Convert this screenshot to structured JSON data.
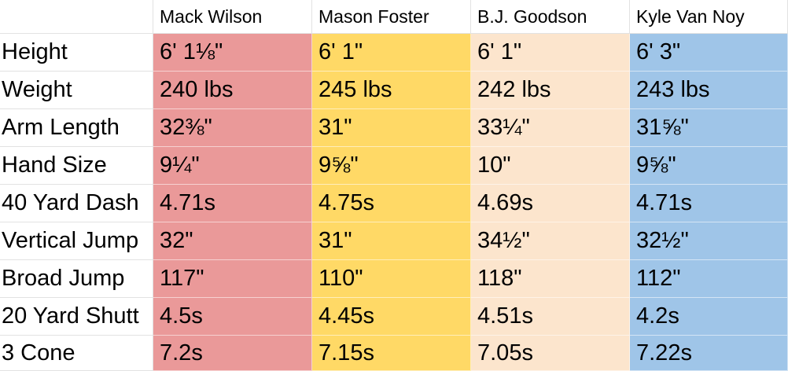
{
  "table": {
    "columns": [
      "Mack Wilson",
      "Mason Foster",
      "B.J. Goodson",
      "Kyle Van Noy"
    ],
    "column_colors": [
      "#ea9999",
      "#ffd966",
      "#fce5cd",
      "#9fc5e8"
    ],
    "rows": [
      {
        "label": "Height",
        "values": [
          "6' 1⅛\"",
          "6' 1\"",
          "6' 1\"",
          "6' 3\""
        ]
      },
      {
        "label": "Weight",
        "values": [
          "240 lbs",
          "245 lbs",
          "242 lbs",
          "243 lbs"
        ]
      },
      {
        "label": "Arm Length",
        "values": [
          "32⅜\"",
          "31\"",
          "33¼\"",
          "31⅝\""
        ]
      },
      {
        "label": "Hand Size",
        "values": [
          "9¼\"",
          "9⅝\"",
          "10\"",
          "9⅝\""
        ]
      },
      {
        "label": "40 Yard Dash",
        "values": [
          "4.71s",
          "4.75s",
          "4.69s",
          "4.71s"
        ]
      },
      {
        "label": "Vertical Jump",
        "values": [
          "32\"",
          "31\"",
          "34½\"",
          "32½\""
        ]
      },
      {
        "label": "Broad Jump",
        "values": [
          "117\"",
          "110\"",
          "118\"",
          "112\""
        ]
      },
      {
        "label": "20 Yard Shutt",
        "values": [
          "4.5s",
          "4.45s",
          "4.51s",
          "4.2s"
        ]
      },
      {
        "label": "3 Cone",
        "values": [
          "7.2s",
          "7.15s",
          "7.05s",
          "7.22s"
        ]
      }
    ]
  }
}
